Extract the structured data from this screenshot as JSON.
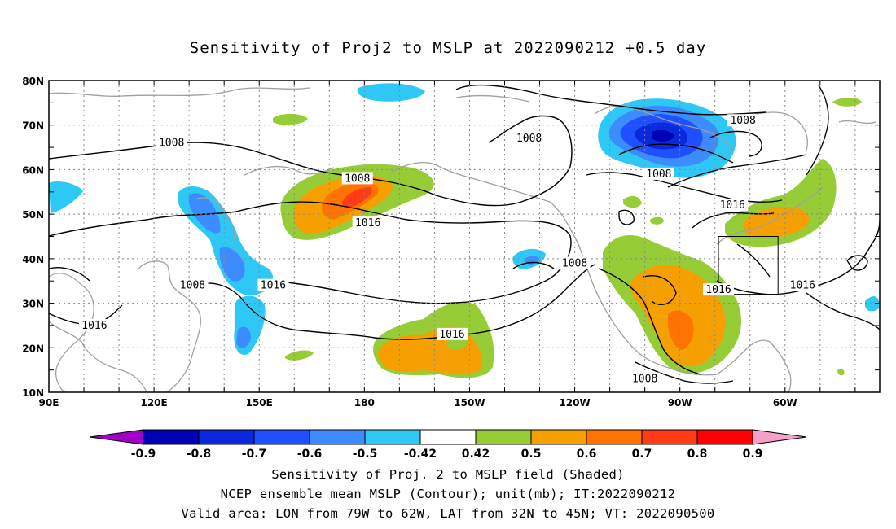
{
  "title": "Sensitivity of Proj2 to MSLP at 2022090212 +0.5 day",
  "lat_ticks": [
    "80N",
    "70N",
    "60N",
    "50N",
    "40N",
    "30N",
    "20N",
    "10N"
  ],
  "lon_ticks": [
    "90E",
    "120E",
    "150E",
    "180",
    "150W",
    "120W",
    "90W",
    "60W"
  ],
  "contour_labels": [
    {
      "text": "1008",
      "lon": 125,
      "lat": 66
    },
    {
      "text": "1008",
      "lon": 178,
      "lat": 58
    },
    {
      "text": "1016",
      "lon": 181,
      "lat": 48
    },
    {
      "text": "1008",
      "lon": 131,
      "lat": 34
    },
    {
      "text": "1016",
      "lon": 154,
      "lat": 34
    },
    {
      "text": "1016",
      "lon": 103,
      "lat": 25
    },
    {
      "text": "1008",
      "lon": 227,
      "lat": 67
    },
    {
      "text": "1008",
      "lon": 264,
      "lat": 59
    },
    {
      "text": "1008",
      "lon": 288,
      "lat": 71
    },
    {
      "text": "1016",
      "lon": 285,
      "lat": 52
    },
    {
      "text": "1008",
      "lon": 240,
      "lat": 39
    },
    {
      "text": "1016",
      "lon": 205,
      "lat": 23
    },
    {
      "text": "1016",
      "lon": 281,
      "lat": 33
    },
    {
      "text": "1016",
      "lon": 305,
      "lat": 34
    },
    {
      "text": "1008",
      "lon": 260,
      "lat": 13
    }
  ],
  "colorbar": {
    "labels": [
      "-0.9",
      "-0.8",
      "-0.7",
      "-0.6",
      "-0.5",
      "-0.42",
      "0.42",
      "0.5",
      "0.6",
      "0.7",
      "0.8",
      "0.9"
    ],
    "colors": [
      "#a000c8",
      "#0000b4",
      "#0a28dc",
      "#1e50ff",
      "#3c8cff",
      "#2dc8f5",
      "#ffffff",
      "#96cd37",
      "#f5a000",
      "#ff7300",
      "#ff3c14",
      "#ff0000",
      "#f5a0c8"
    ]
  },
  "captions": [
    "Sensitivity of Proj. 2 to MSLP field (Shaded)",
    "NCEP ensemble mean MSLP (Contour); unit(mb); IT:2022090212",
    "Valid area: LON from 79W to 62W, LAT from 32N to 45N; VT: 2022090500"
  ],
  "valid_area": {
    "lon_min": 281,
    "lon_max": 298,
    "lat_min": 32,
    "lat_max": 45
  }
}
